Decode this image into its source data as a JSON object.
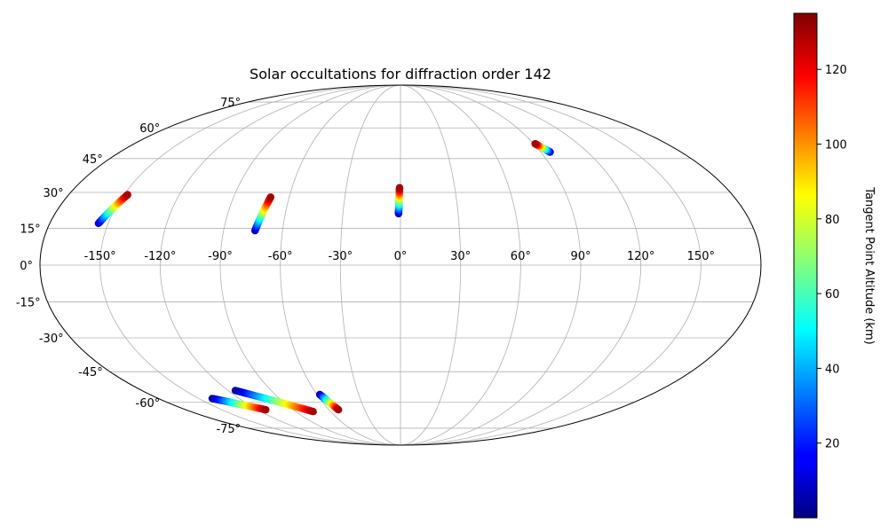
{
  "chart_data": {
    "type": "scatter",
    "projection": "mollweide",
    "title": "Solar occultations for diffraction order 142",
    "grid": true,
    "lon_ticks": [
      {
        "value": -150,
        "label": "-150°"
      },
      {
        "value": -120,
        "label": "-120°"
      },
      {
        "value": -90,
        "label": "-90°"
      },
      {
        "value": -60,
        "label": "-60°"
      },
      {
        "value": -30,
        "label": "-30°"
      },
      {
        "value": 0,
        "label": "0°"
      },
      {
        "value": 30,
        "label": "30°"
      },
      {
        "value": 60,
        "label": "60°"
      },
      {
        "value": 90,
        "label": "90°"
      },
      {
        "value": 120,
        "label": "120°"
      },
      {
        "value": 150,
        "label": "150°"
      }
    ],
    "lat_ticks": [
      {
        "value": 75,
        "label": "75°"
      },
      {
        "value": 60,
        "label": "60°"
      },
      {
        "value": 45,
        "label": "45°"
      },
      {
        "value": 30,
        "label": "30°"
      },
      {
        "value": 15,
        "label": "15°"
      },
      {
        "value": 0,
        "label": "0°"
      },
      {
        "value": -15,
        "label": "-15°"
      },
      {
        "value": -30,
        "label": "-30°"
      },
      {
        "value": -45,
        "label": "-45°"
      },
      {
        "value": -60,
        "label": "-60°"
      },
      {
        "value": -75,
        "label": "-75°"
      }
    ],
    "colorbar": {
      "label": "Tangent Point Altitude (km)",
      "colormap": "jet",
      "range": [
        0,
        135
      ],
      "ticks": [
        {
          "value": 20,
          "label": "20"
        },
        {
          "value": 40,
          "label": "40"
        },
        {
          "value": 60,
          "label": "60"
        },
        {
          "value": 80,
          "label": "80"
        },
        {
          "value": 100,
          "label": "100"
        },
        {
          "value": 120,
          "label": "120"
        }
      ]
    },
    "tracks": [
      {
        "lon_start": -155,
        "lat_start": 17,
        "lon_end": -148,
        "lat_end": 29,
        "alt_start": 5,
        "alt_end": 130
      },
      {
        "lon_start": -74,
        "lat_start": 14,
        "lon_end": -70,
        "lat_end": 28,
        "alt_start": 5,
        "alt_end": 130
      },
      {
        "lon_start": -1,
        "lat_start": 21,
        "lon_end": -0.5,
        "lat_end": 32,
        "alt_start": 5,
        "alt_end": 130
      },
      {
        "lon_start": 96,
        "lat_start": 48,
        "lon_end": 91,
        "lat_end": 52,
        "alt_start": 5,
        "alt_end": 130
      },
      {
        "lon_start": -140,
        "lat_start": -58,
        "lon_end": -113,
        "lat_end": -64,
        "alt_start": 2,
        "alt_end": 130
      },
      {
        "lon_start": -115,
        "lat_start": -54,
        "lon_end": -75,
        "lat_end": -65,
        "alt_start": 2,
        "alt_end": 130
      },
      {
        "lon_start": -58,
        "lat_start": -56,
        "lon_end": -52,
        "lat_end": -64,
        "alt_start": 2,
        "alt_end": 130
      }
    ]
  }
}
